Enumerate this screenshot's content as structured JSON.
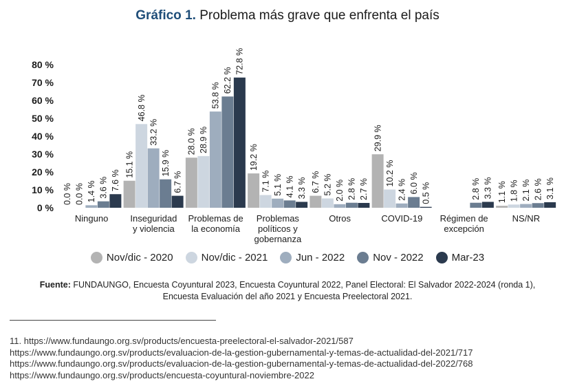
{
  "header": {
    "title_number": "Gráfico 1.",
    "title_text": "Problema más grave que enfrenta el país"
  },
  "chart_data": {
    "type": "bar",
    "title": "Gráfico 1. Problema más grave que enfrenta el país",
    "categories": [
      [
        "Ninguno"
      ],
      [
        "Inseguridad",
        "y violencia"
      ],
      [
        "Problemas de",
        "la economía"
      ],
      [
        "Problemas",
        "políticos y",
        "gobernanza"
      ],
      [
        "Otros"
      ],
      [
        "COVID-19"
      ],
      [
        "Régimen de",
        "excepción"
      ],
      [
        "NS/NR"
      ]
    ],
    "series": [
      {
        "name": "Nov/dic - 2020",
        "color": "#b3b3b3",
        "values": [
          0.0,
          15.1,
          28.0,
          19.2,
          6.7,
          29.9,
          null,
          1.1
        ]
      },
      {
        "name": "Nov/dic - 2021",
        "color": "#cdd6e0",
        "values": [
          0.0,
          46.8,
          28.9,
          7.1,
          5.2,
          10.2,
          null,
          1.8
        ]
      },
      {
        "name": "Jun - 2022",
        "color": "#9eadbe",
        "values": [
          1.4,
          33.2,
          53.8,
          5.1,
          2.0,
          2.4,
          null,
          2.1
        ]
      },
      {
        "name": "Nov - 2022",
        "color": "#6b7d91",
        "values": [
          3.6,
          15.9,
          62.2,
          4.1,
          2.8,
          6.0,
          2.8,
          2.6
        ]
      },
      {
        "name": "Mar-23",
        "color": "#2b3a4e",
        "values": [
          7.6,
          6.7,
          72.8,
          3.3,
          2.7,
          0.5,
          3.3,
          3.1
        ]
      }
    ],
    "ylim": [
      0,
      80
    ],
    "yticks": [
      "0 %",
      "10 %",
      "20 %",
      "30 %",
      "40 %",
      "50 %",
      "60 %",
      "70 %",
      "80 %"
    ],
    "value_suffix": " %",
    "legend_position": "bottom",
    "grid": false
  },
  "source": {
    "label": "Fuente:",
    "line1": " FUNDAUNGO, Encuesta Coyuntural 2023, Encuesta Coyuntural 2022, Panel Electoral: El Salvador 2022-2024 (ronda 1),",
    "line2": "Encuesta Evaluación del año 2021 y Encuesta Preelectoral 2021."
  },
  "footnotes": {
    "number": "11.",
    "lines": [
      "https://www.fundaungo.org.sv/products/encuesta-preelectoral-el-salvador-2021/587",
      "https://www.fundaungo.org.sv/products/evaluacion-de-la-gestion-gubernamental-y-temas-de-actualidad-del-2021/717",
      "https://www.fundaungo.org.sv/products/evaluacion-de-la-gestion-gubernamental-y-temas-de-actualidad-del-2022/768",
      "https://www.fundaungo.org.sv/products/encuesta-coyuntural-noviembre-2022"
    ]
  }
}
